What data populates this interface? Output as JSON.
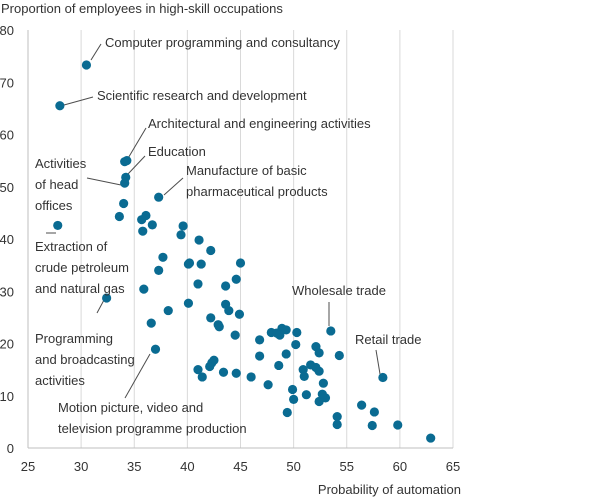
{
  "chart_data": {
    "type": "scatter",
    "title": "",
    "xlabel": "Probability of automation",
    "ylabel": "Proportion of employees in high-skill occupations",
    "xlim": [
      25,
      65
    ],
    "ylim": [
      0,
      80
    ],
    "x_ticks": [
      25,
      30,
      35,
      40,
      45,
      50,
      55,
      60,
      65
    ],
    "y_ticks": [
      0,
      10,
      20,
      30,
      40,
      50,
      60,
      70,
      80
    ],
    "grid": "vertical",
    "color": "#0a6b92",
    "points": [
      [
        30.5,
        73.3
      ],
      [
        28.0,
        65.5
      ],
      [
        34.1,
        54.8
      ],
      [
        34.3,
        55.0
      ],
      [
        34.2,
        51.8
      ],
      [
        34.1,
        50.7
      ],
      [
        37.3,
        48.0
      ],
      [
        34.0,
        46.8
      ],
      [
        33.6,
        44.3
      ],
      [
        35.7,
        43.7
      ],
      [
        36.1,
        44.5
      ],
      [
        36.7,
        42.7
      ],
      [
        35.8,
        41.5
      ],
      [
        27.8,
        42.6
      ],
      [
        39.6,
        42.5
      ],
      [
        39.4,
        40.8
      ],
      [
        41.1,
        39.8
      ],
      [
        42.2,
        37.8
      ],
      [
        37.7,
        36.5
      ],
      [
        40.1,
        35.2
      ],
      [
        40.2,
        35.4
      ],
      [
        41.3,
        35.2
      ],
      [
        45.0,
        35.4
      ],
      [
        37.3,
        34.0
      ],
      [
        44.6,
        32.3
      ],
      [
        43.6,
        31.0
      ],
      [
        41.0,
        31.4
      ],
      [
        35.9,
        30.4
      ],
      [
        32.4,
        28.7
      ],
      [
        40.1,
        27.7
      ],
      [
        43.6,
        27.5
      ],
      [
        43.9,
        26.3
      ],
      [
        38.2,
        26.3
      ],
      [
        44.9,
        25.6
      ],
      [
        42.2,
        24.9
      ],
      [
        42.9,
        23.6
      ],
      [
        43.0,
        23.2
      ],
      [
        36.6,
        23.9
      ],
      [
        44.5,
        21.6
      ],
      [
        46.8,
        20.7
      ],
      [
        47.9,
        22.1
      ],
      [
        48.4,
        22.0
      ],
      [
        48.9,
        22.9
      ],
      [
        49.3,
        22.6
      ],
      [
        48.7,
        21.6
      ],
      [
        50.3,
        22.1
      ],
      [
        53.5,
        22.4
      ],
      [
        50.2,
        19.8
      ],
      [
        46.8,
        17.6
      ],
      [
        49.3,
        18.0
      ],
      [
        52.1,
        19.4
      ],
      [
        52.4,
        18.2
      ],
      [
        54.3,
        17.7
      ],
      [
        51.6,
        15.9
      ],
      [
        52.1,
        15.4
      ],
      [
        52.4,
        14.7
      ],
      [
        50.9,
        15.0
      ],
      [
        48.6,
        15.8
      ],
      [
        42.5,
        16.8
      ],
      [
        42.3,
        16.3
      ],
      [
        42.1,
        15.6
      ],
      [
        41.0,
        15.0
      ],
      [
        43.4,
        14.5
      ],
      [
        44.6,
        14.3
      ],
      [
        46.0,
        13.6
      ],
      [
        41.4,
        13.6
      ],
      [
        58.4,
        13.5
      ],
      [
        47.6,
        12.1
      ],
      [
        51.0,
        13.7
      ],
      [
        49.9,
        11.2
      ],
      [
        50.0,
        9.3
      ],
      [
        51.2,
        10.2
      ],
      [
        52.4,
        8.9
      ],
      [
        53.0,
        9.6
      ],
      [
        52.7,
        10.3
      ],
      [
        49.4,
        6.8
      ],
      [
        56.4,
        8.2
      ],
      [
        57.6,
        6.9
      ],
      [
        54.1,
        6.0
      ],
      [
        54.1,
        4.5
      ],
      [
        57.4,
        4.3
      ],
      [
        59.8,
        4.4
      ],
      [
        62.9,
        1.9
      ],
      [
        37.0,
        18.9
      ],
      [
        52.8,
        12.4
      ]
    ],
    "annotations": [
      {
        "label": [
          "Computer programming and consultancy"
        ],
        "point": [
          30.5,
          73.3
        ]
      },
      {
        "label": [
          "Scientific research and development"
        ],
        "point": [
          28.0,
          65.5
        ]
      },
      {
        "label": [
          "Architectural and engineering activities"
        ],
        "point": [
          34.3,
          55.0
        ]
      },
      {
        "label": [
          "Education"
        ],
        "point": [
          34.2,
          51.8
        ]
      },
      {
        "label": [
          "Activities",
          "of head",
          "offices"
        ],
        "point": [
          34.1,
          50.7
        ]
      },
      {
        "label": [
          "Manufacture of basic",
          "pharmaceutical products"
        ],
        "point": [
          37.3,
          48.0
        ]
      },
      {
        "label": [
          "Extraction of",
          "crude petroleum",
          "and natural gas"
        ],
        "point": [
          27.8,
          42.6
        ]
      },
      {
        "label": [
          "Wholesale trade"
        ],
        "point": [
          53.5,
          22.4
        ]
      },
      {
        "label": [
          "Retail trade"
        ],
        "point": [
          58.4,
          13.5
        ]
      },
      {
        "label": [
          "Programming",
          "and broadcasting",
          "activities"
        ],
        "point": [
          32.4,
          28.7
        ]
      },
      {
        "label": [
          "Motion picture, video and",
          "television programme production"
        ],
        "point": [
          37.0,
          18.9
        ]
      }
    ]
  }
}
